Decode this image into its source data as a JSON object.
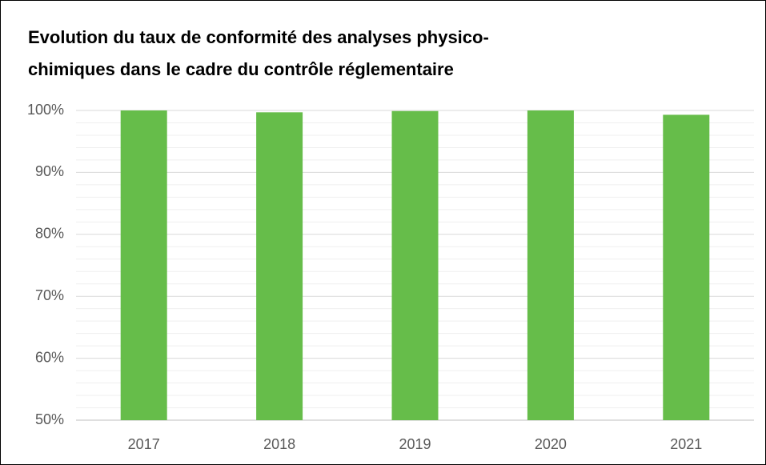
{
  "chart_data": {
    "type": "bar",
    "title": [
      "Evolution du taux de conformité des analyses physico-",
      "chimiques dans le cadre du contrôle réglementaire"
    ],
    "categories": [
      "2017",
      "2018",
      "2019",
      "2020",
      "2021"
    ],
    "values": [
      100,
      99.7,
      99.9,
      100,
      99.3
    ],
    "color": "#66bd4a",
    "ylim": [
      50,
      100
    ],
    "yticks": [
      {
        "value": 50,
        "label": "50%"
      },
      {
        "value": 60,
        "label": "60%"
      },
      {
        "value": 70,
        "label": "70%"
      },
      {
        "value": 80,
        "label": "80%"
      },
      {
        "value": 90,
        "label": "90%"
      },
      {
        "value": 100,
        "label": "100%"
      }
    ],
    "minor_yticks": [
      52,
      54,
      56,
      58,
      62,
      64,
      66,
      68,
      72,
      74,
      76,
      78,
      82,
      84,
      86,
      88,
      92,
      94,
      96,
      98
    ],
    "grid": true
  }
}
